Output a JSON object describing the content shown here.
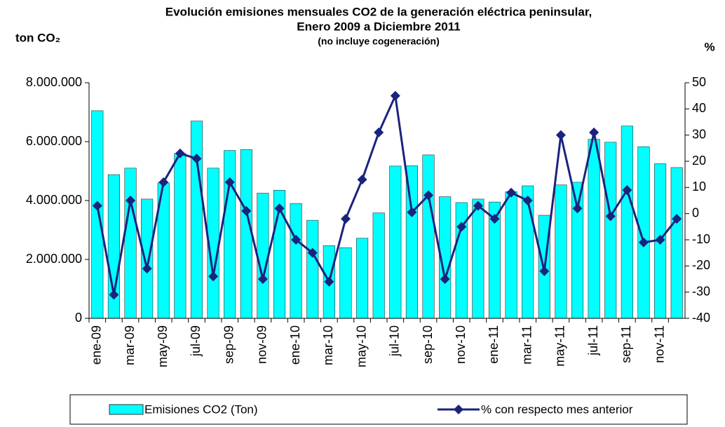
{
  "chart_data": {
    "type": "bar-line",
    "title": "Evolución emisiones mensuales CO2 de la generación eléctrica peninsular,",
    "subtitle": "Enero 2009 a Diciembre 2011",
    "note": "(no incluye cogeneración)",
    "y_label": "ton CO₂",
    "y2_label": "%",
    "categories": [
      "ene-09",
      null,
      "mar-09",
      null,
      "may-09",
      null,
      "jul-09",
      null,
      "sep-09",
      null,
      "nov-09",
      null,
      "ene-10",
      null,
      "mar-10",
      null,
      "may-10",
      null,
      "jul-10",
      null,
      "sep-10",
      null,
      "nov-10",
      null,
      "ene-11",
      null,
      "mar-11",
      null,
      "may-11",
      null,
      "jul-11",
      null,
      "sep-11",
      null,
      "nov-11",
      null
    ],
    "series": [
      {
        "name": "Emisiones CO2 (Ton)",
        "type": "bar",
        "color": "#00ffff",
        "values": [
          7050000,
          4880000,
          5100000,
          4050000,
          4600000,
          5600000,
          6700000,
          5100000,
          5700000,
          5730000,
          4250000,
          4350000,
          3900000,
          3330000,
          2470000,
          2400000,
          2720000,
          3580000,
          5170000,
          5180000,
          5550000,
          4130000,
          3930000,
          4050000,
          3950000,
          4300000,
          4500000,
          3500000,
          4530000,
          4620000,
          6080000,
          5980000,
          6530000,
          5830000,
          5250000,
          5120000
        ]
      },
      {
        "name": "% con respecto mes anterior",
        "type": "line",
        "axis": "y2",
        "color": "#1a237e",
        "values": [
          3,
          -31,
          5,
          -21,
          12,
          23,
          21,
          -24,
          12,
          1,
          -25,
          2,
          -10,
          -15,
          -26,
          -2,
          13,
          31,
          45,
          0.5,
          7,
          -25,
          -5,
          3,
          -2,
          8,
          5,
          -22,
          30,
          2,
          31,
          -1,
          9,
          -11,
          -10,
          -2
        ]
      }
    ],
    "ylim": [
      0,
      8000000
    ],
    "yticks": [
      0,
      {
        "value": 2000000,
        "label": "2.000.000"
      },
      {
        "value": 4000000,
        "label": "4.000.000"
      },
      {
        "value": 6000000,
        "label": "6.000.000"
      },
      {
        "value": 8000000,
        "label": "8.000.000"
      }
    ],
    "y2lim": [
      -40,
      50
    ],
    "y2ticks": [
      -40,
      -30,
      -20,
      -10,
      0,
      10,
      20,
      30,
      40,
      50
    ]
  }
}
